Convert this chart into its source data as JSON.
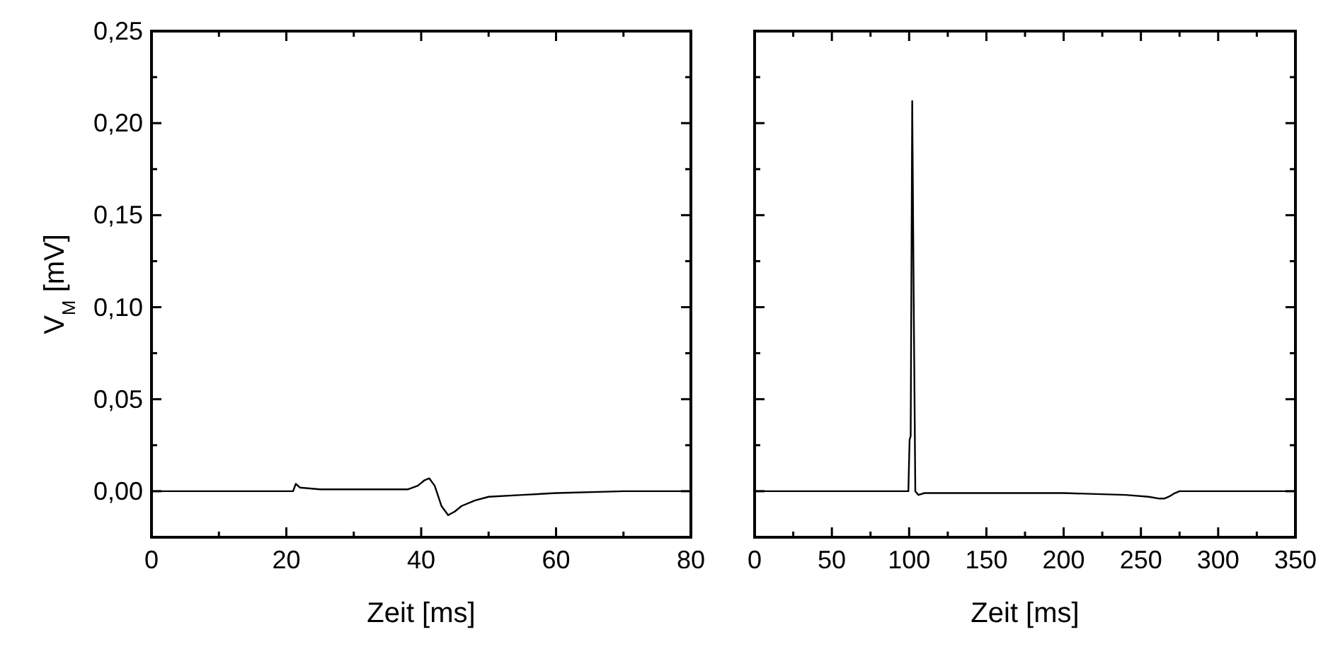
{
  "chart_data": [
    {
      "type": "line",
      "xlabel": "Zeit [ms]",
      "ylabel": "V$_{M}$ [mV]",
      "xlim": [
        0,
        80
      ],
      "ylim": [
        -0.025,
        0.25
      ],
      "xticks": [
        0,
        {
          "value": 10,
          "label": null
        },
        20,
        {
          "value": 30,
          "label": null
        },
        40,
        {
          "value": 50,
          "label": null
        },
        60,
        {
          "value": 70,
          "label": null
        },
        80
      ],
      "yticks": [
        {
          "value": -0.025,
          "label": null
        },
        {
          "value": 0,
          "label": "0,00"
        },
        {
          "value": 0.025,
          "label": null
        },
        {
          "value": 0.05,
          "label": "0,05"
        },
        {
          "value": 0.075,
          "label": null
        },
        {
          "value": 0.1,
          "label": "0,10"
        },
        {
          "value": 0.125,
          "label": null
        },
        {
          "value": 0.15,
          "label": "0,15"
        },
        {
          "value": 0.175,
          "label": null
        },
        {
          "value": 0.2,
          "label": "0,20"
        },
        {
          "value": 0.225,
          "label": null
        },
        {
          "value": 0.25,
          "label": "0,25"
        }
      ],
      "marker": "none",
      "line_style": "solid",
      "grid": false,
      "series": [
        {
          "color": "#000000",
          "x": [
            0,
            10,
            20,
            21,
            21.4,
            22,
            25,
            30,
            35,
            38,
            39.5,
            40.5,
            41.2,
            42,
            43,
            44,
            45,
            46,
            48,
            50,
            55,
            60,
            70,
            80
          ],
          "values": [
            0,
            0,
            0,
            0,
            0.004,
            0.002,
            0.001,
            0.001,
            0.001,
            0.001,
            0.003,
            0.006,
            0.007,
            0.003,
            -0.008,
            -0.013,
            -0.011,
            -0.008,
            -0.005,
            -0.003,
            -0.002,
            -0.001,
            0,
            0
          ]
        }
      ]
    },
    {
      "type": "line",
      "xlabel": "Zeit [ms]",
      "xlim": [
        0,
        350
      ],
      "ylim": [
        -0.025,
        0.25
      ],
      "tick_labels": "x",
      "xticks": [
        0,
        {
          "value": 25,
          "label": null
        },
        50,
        {
          "value": 75,
          "label": null
        },
        100,
        {
          "value": 125,
          "label": null
        },
        150,
        {
          "value": 175,
          "label": null
        },
        200,
        {
          "value": 225,
          "label": null
        },
        250,
        {
          "value": 275,
          "label": null
        },
        300,
        {
          "value": 325,
          "label": null
        },
        350
      ],
      "yticks": [
        {
          "value": -0.025,
          "label": null
        },
        0,
        {
          "value": 0.025,
          "label": null
        },
        0.05,
        {
          "value": 0.075,
          "label": null
        },
        0.1,
        {
          "value": 0.125,
          "label": null
        },
        0.15,
        {
          "value": 0.175,
          "label": null
        },
        0.2,
        {
          "value": 0.225,
          "label": null
        },
        0.25
      ],
      "marker": "none",
      "line_style": "solid",
      "grid": false,
      "series": [
        {
          "color": "#000000",
          "x": [
            0,
            50,
            99.5,
            100.3,
            101,
            102,
            103,
            104,
            106,
            110,
            120,
            150,
            200,
            240,
            255,
            262,
            265,
            268,
            272,
            275,
            300,
            350
          ],
          "values": [
            0,
            0,
            0,
            0.028,
            0.03,
            0.212,
            0.1,
            0,
            -0.002,
            -0.001,
            -0.001,
            -0.001,
            -0.001,
            -0.002,
            -0.003,
            -0.004,
            -0.004,
            -0.003,
            -0.001,
            0,
            0,
            0
          ]
        }
      ]
    }
  ]
}
